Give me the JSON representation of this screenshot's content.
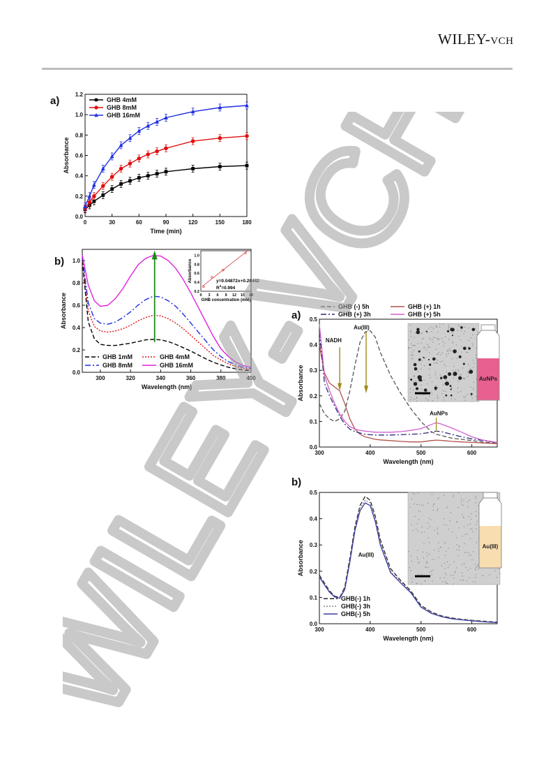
{
  "header": {
    "logo_main": "WILEY-",
    "logo_suffix": "VCH"
  },
  "watermark": {
    "text": "WILEY-VCH",
    "color": "#9e9e9e"
  },
  "chart_data": [
    {
      "panel": "a)",
      "type": "line",
      "xlabel": "Time (min)",
      "ylabel": "Absorbance",
      "xlim": [
        0,
        180
      ],
      "ylim": [
        0,
        1.2
      ],
      "xticks": [
        0,
        30,
        60,
        90,
        120,
        150,
        180
      ],
      "yticks": [
        0.0,
        0.2,
        0.4,
        0.6,
        0.8,
        1.0,
        1.2
      ],
      "x": [
        0,
        5,
        10,
        20,
        30,
        40,
        50,
        60,
        70,
        80,
        90,
        120,
        150,
        180
      ],
      "series": [
        {
          "name": "GHB 4mM",
          "color": "#000000",
          "marker": "square",
          "values": [
            0.07,
            0.11,
            0.15,
            0.21,
            0.27,
            0.32,
            0.35,
            0.38,
            0.4,
            0.42,
            0.44,
            0.47,
            0.49,
            0.5
          ]
        },
        {
          "name": "GHB 8mM",
          "color": "#e01010",
          "marker": "circle",
          "values": [
            0.08,
            0.14,
            0.2,
            0.3,
            0.39,
            0.47,
            0.52,
            0.57,
            0.61,
            0.64,
            0.67,
            0.74,
            0.77,
            0.79
          ]
        },
        {
          "name": "GHB 16mM",
          "color": "#1f2fe0",
          "marker": "triangle",
          "values": [
            0.1,
            0.2,
            0.31,
            0.47,
            0.59,
            0.7,
            0.77,
            0.84,
            0.89,
            0.93,
            0.97,
            1.03,
            1.07,
            1.09
          ]
        }
      ],
      "legend": "top-left"
    },
    {
      "panel": "b)",
      "type": "line",
      "xlabel": "Wavelength (nm)",
      "ylabel": "Absorbance",
      "xlim": [
        288,
        400
      ],
      "ylim": [
        0,
        1.1
      ],
      "xticks": [
        300,
        320,
        340,
        360,
        380,
        400
      ],
      "yticks": [
        0.0,
        0.2,
        0.4,
        0.6,
        0.8,
        1.0
      ],
      "x": [
        288,
        292,
        296,
        300,
        305,
        310,
        315,
        320,
        325,
        330,
        335,
        340,
        345,
        350,
        355,
        360,
        365,
        370,
        375,
        380,
        385,
        390,
        395,
        400
      ],
      "series": [
        {
          "name": "GHB 1mM",
          "color": "#000000",
          "dash": "6,3",
          "values": [
            1.0,
            0.45,
            0.3,
            0.25,
            0.24,
            0.24,
            0.25,
            0.26,
            0.275,
            0.29,
            0.295,
            0.29,
            0.275,
            0.25,
            0.22,
            0.19,
            0.155,
            0.12,
            0.09,
            0.065,
            0.045,
            0.03,
            0.02,
            0.015
          ]
        },
        {
          "name": "GHB 4mM",
          "color": "#e01010",
          "dash": "2,2",
          "values": [
            1.02,
            0.55,
            0.41,
            0.37,
            0.36,
            0.37,
            0.39,
            0.42,
            0.46,
            0.49,
            0.51,
            0.505,
            0.48,
            0.44,
            0.39,
            0.33,
            0.27,
            0.21,
            0.15,
            0.11,
            0.075,
            0.05,
            0.035,
            0.025
          ]
        },
        {
          "name": "GHB 8mM",
          "color": "#1f2fe0",
          "dash": "8,3,2,3",
          "values": [
            1.04,
            0.62,
            0.48,
            0.44,
            0.43,
            0.45,
            0.49,
            0.54,
            0.6,
            0.65,
            0.68,
            0.675,
            0.64,
            0.59,
            0.52,
            0.44,
            0.36,
            0.28,
            0.2,
            0.14,
            0.095,
            0.065,
            0.045,
            0.035
          ]
        },
        {
          "name": "GHB 16mM",
          "color": "#e020e0",
          "dash": "",
          "values": [
            1.05,
            0.78,
            0.64,
            0.59,
            0.6,
            0.66,
            0.75,
            0.86,
            0.96,
            1.02,
            1.045,
            1.04,
            1.0,
            0.93,
            0.83,
            0.71,
            0.58,
            0.45,
            0.32,
            0.21,
            0.14,
            0.09,
            0.06,
            0.045
          ]
        }
      ],
      "legend": "bottom-left",
      "inset": {
        "xlabel": "GHB concentration (mM)",
        "ylabel": "Absorbance",
        "xlim": [
          0,
          18
        ],
        "ylim": [
          0.2,
          1.1
        ],
        "xticks": [
          0,
          3,
          6,
          9,
          12,
          15,
          18
        ],
        "yticks": [
          0.2,
          0.4,
          0.6,
          0.8,
          1.0
        ],
        "x": [
          1,
          4,
          8,
          16
        ],
        "values": [
          0.3,
          0.51,
          0.67,
          1.05
        ],
        "fit_label": "y=0.04872x+0.28442",
        "r2_label": "R",
        "r2_sup": "2",
        "r2_value": "=0.994"
      }
    },
    {
      "panel": "a)",
      "type": "line",
      "xlabel": "Wavelength (nm)",
      "ylabel": "Absorbance",
      "xlim": [
        300,
        650
      ],
      "ylim": [
        0,
        0.5
      ],
      "xticks": [
        300,
        400,
        500,
        600
      ],
      "yticks": [
        0.0,
        0.1,
        0.2,
        0.3,
        0.4,
        0.5
      ],
      "x": [
        300,
        310,
        320,
        330,
        340,
        350,
        360,
        370,
        380,
        390,
        400,
        410,
        420,
        440,
        460,
        480,
        500,
        520,
        530,
        540,
        560,
        580,
        600,
        620,
        650
      ],
      "series": [
        {
          "name": "GHB (-) 5h",
          "color": "#555555",
          "dash": "6,3",
          "values": [
            0.17,
            0.13,
            0.11,
            0.1,
            0.11,
            0.14,
            0.22,
            0.32,
            0.41,
            0.45,
            0.455,
            0.43,
            0.37,
            0.28,
            0.21,
            0.15,
            0.1,
            0.06,
            0.05,
            0.045,
            0.035,
            0.03,
            0.025,
            0.02,
            0.015
          ]
        },
        {
          "name": "GHB (+) 1h",
          "color": "#b0524a",
          "dash": "",
          "values": [
            0.4,
            0.29,
            0.25,
            0.235,
            0.22,
            0.17,
            0.11,
            0.07,
            0.05,
            0.04,
            0.035,
            0.03,
            0.028,
            0.025,
            0.022,
            0.02,
            0.02,
            0.025,
            0.027,
            0.026,
            0.022,
            0.02,
            0.018,
            0.016,
            0.013
          ]
        },
        {
          "name": "GHB (+) 3h",
          "color": "#2a2a7a",
          "dash": "8,3,2,3",
          "values": [
            0.45,
            0.25,
            0.2,
            0.16,
            0.12,
            0.09,
            0.07,
            0.06,
            0.055,
            0.05,
            0.048,
            0.047,
            0.047,
            0.047,
            0.048,
            0.05,
            0.052,
            0.058,
            0.062,
            0.06,
            0.05,
            0.04,
            0.032,
            0.026,
            0.018
          ]
        },
        {
          "name": "GHB (+) 5h",
          "color": "#d060d0",
          "dash": "",
          "values": [
            0.48,
            0.28,
            0.22,
            0.17,
            0.13,
            0.1,
            0.08,
            0.07,
            0.065,
            0.062,
            0.06,
            0.058,
            0.058,
            0.058,
            0.06,
            0.065,
            0.072,
            0.088,
            0.095,
            0.09,
            0.075,
            0.058,
            0.04,
            0.028,
            0.018
          ]
        }
      ],
      "annotations": [
        "NADH",
        "Au(III)",
        "AuNPs"
      ],
      "vial_label": "AuNPs",
      "legend": "top"
    },
    {
      "panel": "b)",
      "type": "line",
      "xlabel": "Wavelength (nm)",
      "ylabel": "Absorbance",
      "xlim": [
        300,
        650
      ],
      "ylim": [
        0,
        0.5
      ],
      "xticks": [
        300,
        400,
        500,
        600
      ],
      "yticks": [
        0.0,
        0.1,
        0.2,
        0.3,
        0.4,
        0.5
      ],
      "x": [
        300,
        310,
        320,
        330,
        340,
        350,
        360,
        370,
        380,
        390,
        400,
        410,
        420,
        440,
        460,
        480,
        500,
        520,
        540,
        560,
        580,
        600,
        620,
        650
      ],
      "series": [
        {
          "name": "GHB(-) 1h",
          "color": "#222222",
          "dash": "6,3",
          "values": [
            0.185,
            0.155,
            0.125,
            0.105,
            0.1,
            0.14,
            0.25,
            0.37,
            0.45,
            0.485,
            0.47,
            0.41,
            0.32,
            0.21,
            0.165,
            0.125,
            0.07,
            0.045,
            0.03,
            0.022,
            0.017,
            0.013,
            0.01,
            0.006
          ]
        },
        {
          "name": "GHB(-) 3h",
          "color": "#888888",
          "dash": "2,2",
          "values": [
            0.18,
            0.15,
            0.122,
            0.103,
            0.098,
            0.135,
            0.24,
            0.36,
            0.44,
            0.47,
            0.46,
            0.4,
            0.31,
            0.2,
            0.16,
            0.12,
            0.065,
            0.042,
            0.028,
            0.02,
            0.016,
            0.012,
            0.009,
            0.005
          ]
        },
        {
          "name": "GHB(-) 5h",
          "color": "#3a3aa0",
          "dash": "",
          "values": [
            0.178,
            0.148,
            0.12,
            0.102,
            0.097,
            0.13,
            0.235,
            0.355,
            0.43,
            0.46,
            0.45,
            0.39,
            0.3,
            0.195,
            0.155,
            0.118,
            0.063,
            0.04,
            0.027,
            0.019,
            0.015,
            0.011,
            0.008,
            0.004
          ]
        }
      ],
      "annotations": [
        "Au(III)"
      ],
      "vial_label": "Au(III)",
      "legend": "bottom-left"
    }
  ]
}
